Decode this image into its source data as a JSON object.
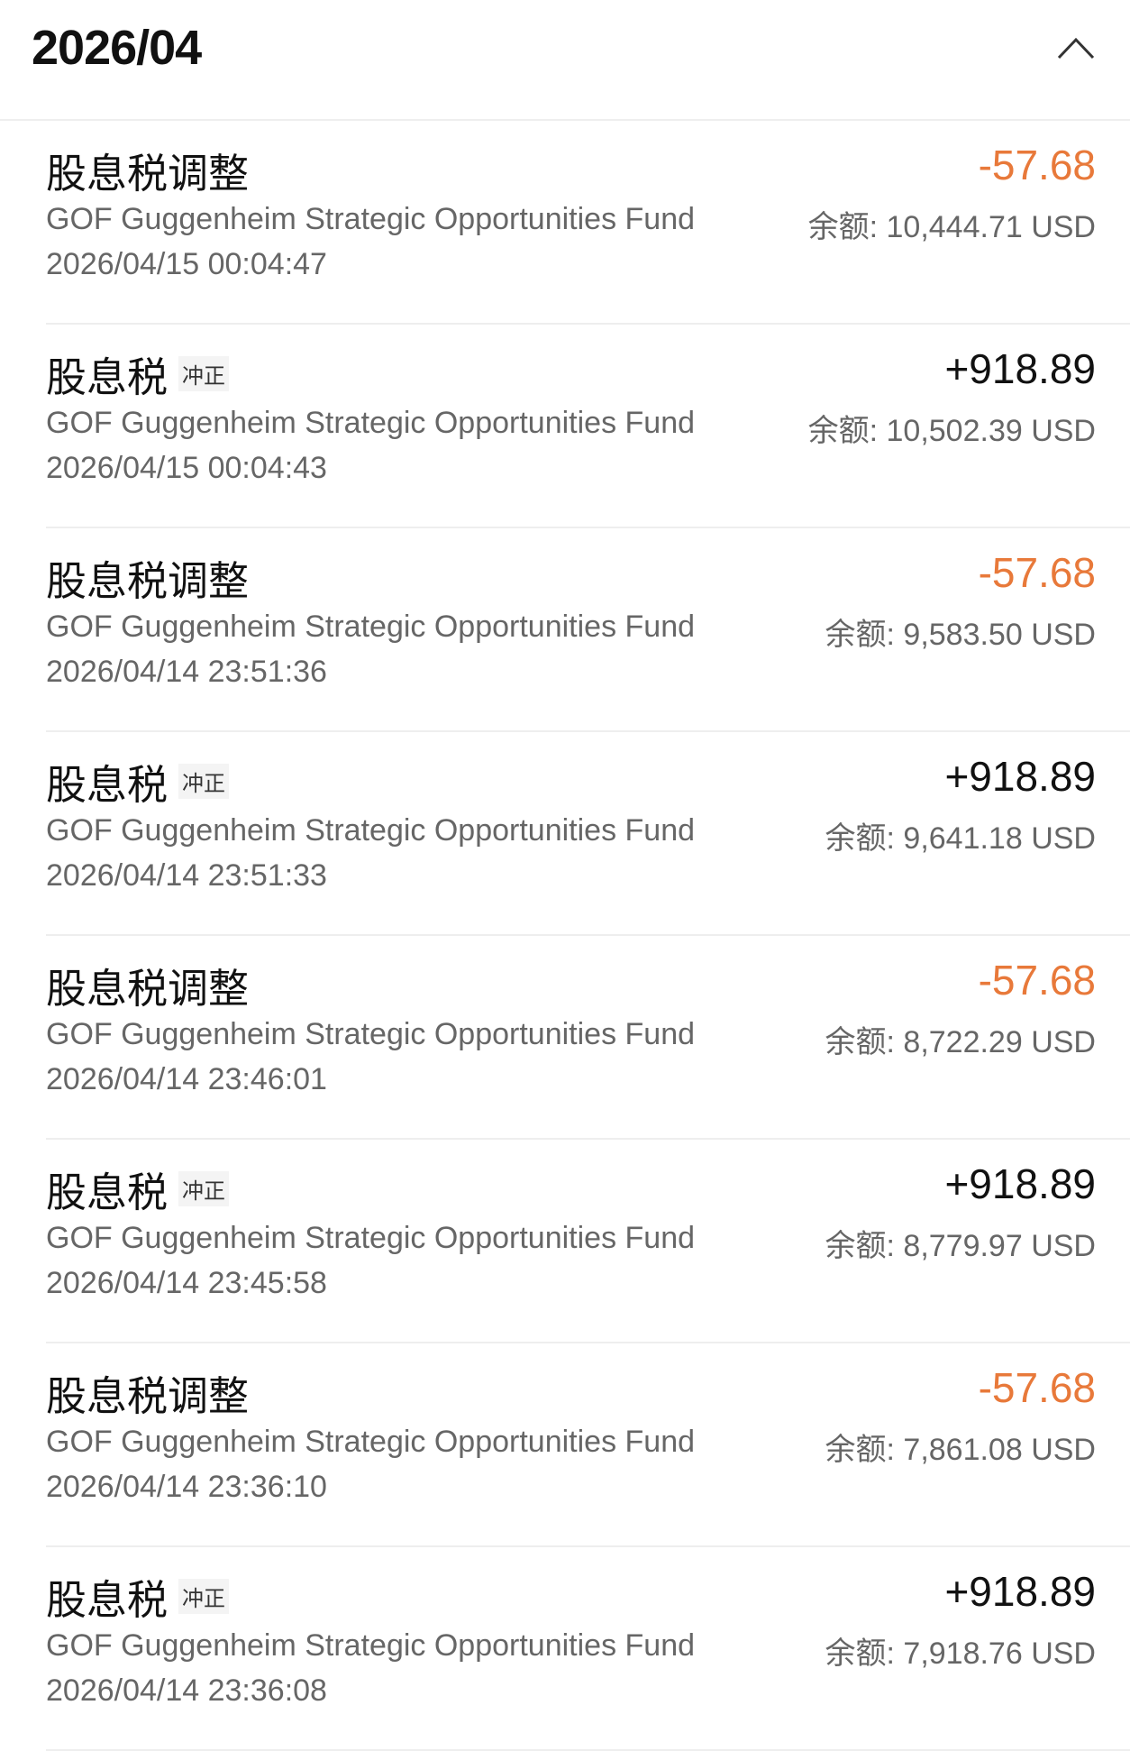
{
  "header": {
    "month": "2026/04",
    "collapse_icon": "chevron-up-icon"
  },
  "colors": {
    "negative": "#e8793a",
    "positive": "#111111"
  },
  "rows": [
    {
      "title": "股息税调整",
      "tag": "",
      "fund": "GOF Guggenheim Strategic Opportunities Fund",
      "date": "2026/04/15 00:04:47",
      "amount": "-57.68",
      "negative": true,
      "balance": "余额: 10,444.71 USD"
    },
    {
      "title": "股息税",
      "tag": "冲正",
      "fund": "GOF Guggenheim Strategic Opportunities Fund",
      "date": "2026/04/15 00:04:43",
      "amount": "+918.89",
      "negative": false,
      "balance": "余额: 10,502.39 USD"
    },
    {
      "title": "股息税调整",
      "tag": "",
      "fund": "GOF Guggenheim Strategic Opportunities Fund",
      "date": "2026/04/14 23:51:36",
      "amount": "-57.68",
      "negative": true,
      "balance": "余额: 9,583.50 USD"
    },
    {
      "title": "股息税",
      "tag": "冲正",
      "fund": "GOF Guggenheim Strategic Opportunities Fund",
      "date": "2026/04/14 23:51:33",
      "amount": "+918.89",
      "negative": false,
      "balance": "余额: 9,641.18 USD"
    },
    {
      "title": "股息税调整",
      "tag": "",
      "fund": "GOF Guggenheim Strategic Opportunities Fund",
      "date": "2026/04/14 23:46:01",
      "amount": "-57.68",
      "negative": true,
      "balance": "余额: 8,722.29 USD"
    },
    {
      "title": "股息税",
      "tag": "冲正",
      "fund": "GOF Guggenheim Strategic Opportunities Fund",
      "date": "2026/04/14 23:45:58",
      "amount": "+918.89",
      "negative": false,
      "balance": "余额: 8,779.97 USD"
    },
    {
      "title": "股息税调整",
      "tag": "",
      "fund": "GOF Guggenheim Strategic Opportunities Fund",
      "date": "2026/04/14 23:36:10",
      "amount": "-57.68",
      "negative": true,
      "balance": "余额: 7,861.08 USD"
    },
    {
      "title": "股息税",
      "tag": "冲正",
      "fund": "GOF Guggenheim Strategic Opportunities Fund",
      "date": "2026/04/14 23:36:08",
      "amount": "+918.89",
      "negative": false,
      "balance": "余额: 7,918.76 USD"
    }
  ]
}
